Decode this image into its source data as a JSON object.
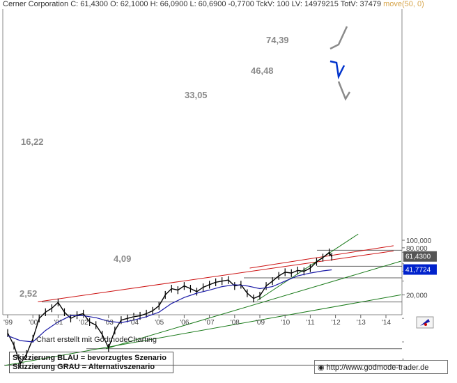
{
  "header": {
    "title": "Cerner Corporation",
    "values": "C: 61,4300  O: 62,1000  H: 66,0900  L: 60,6900  -0,7700  TckV: 100  LV: 14979215  TotV: 37479",
    "ma": "move(50, 0)"
  },
  "credit": "Chart erstellt mit GodmodeCharting",
  "legend": {
    "line1": "Skizzierung BLAU = bevorzugtes Szenario",
    "line2": "Skizzierung GRAU = Alternativszenario"
  },
  "url": "http://www.godmode-trader.de",
  "colors": {
    "price": "#000000",
    "ma": "#1a1aa6",
    "channel_red": "#cc1111",
    "trend_green": "#1a7a1a",
    "support": "#666666",
    "badge_last": "#555555",
    "badge_ma": "#0022cc",
    "scenario_blue": "#0033cc",
    "scenario_grey": "#8a8a8a"
  },
  "chart_data": {
    "type": "line",
    "scale": "log",
    "x_ticks": [
      "'99",
      "'00",
      "'01",
      "'02",
      "'03",
      "'04",
      "'05",
      "'06",
      "'07",
      "'08",
      "'09",
      "'10",
      "'11",
      "'12",
      "'13",
      "'14"
    ],
    "y_ticks": [
      "100,000",
      "80,000",
      "20,000"
    ],
    "last_price_label": "61,4300",
    "ma_label": "41,7724",
    "annotations": [
      "74,39",
      "46,48",
      "33,05",
      "16,22",
      "4,09",
      "2,52"
    ],
    "levels": [
      74.39,
      46.48,
      33.05,
      16.22,
      4.09,
      2.52
    ],
    "series": [
      {
        "x": [
          1999.0,
          1999.25,
          1999.5,
          1999.75,
          2000.0,
          2000.25,
          2000.5,
          2000.75,
          2001.0,
          2001.25,
          2001.5,
          2001.75,
          2002.0,
          2002.25,
          2002.5,
          2002.75,
          2003.0,
          2003.25,
          2003.5,
          2003.75,
          2004.0,
          2004.25,
          2004.5,
          2004.75,
          2005.0,
          2005.25,
          2005.5,
          2005.75,
          2006.0,
          2006.25,
          2006.5,
          2006.75,
          2007.0,
          2007.25,
          2007.5,
          2007.75,
          2008.0,
          2008.25,
          2008.5,
          2008.75,
          2009.0,
          2009.25,
          2009.5,
          2009.75,
          2010.0,
          2010.25,
          2010.5,
          2010.75,
          2011.0,
          2011.25,
          2011.5,
          2011.75,
          2011.85
        ],
        "y": [
          6.5,
          4.5,
          2.6,
          3.5,
          5.5,
          10,
          12,
          13.5,
          16,
          12,
          10,
          11,
          11.5,
          9,
          8.2,
          6.2,
          4.2,
          7,
          9.5,
          10,
          10.5,
          10.8,
          11.5,
          12.5,
          14.5,
          20,
          24,
          23,
          26,
          24,
          22,
          25,
          27,
          29,
          30,
          31,
          26,
          27,
          21,
          18,
          19.5,
          26,
          30,
          35,
          39,
          38,
          41,
          40,
          44,
          53,
          60,
          70,
          61.43
        ]
      },
      {
        "x": [
          1999.0,
          1999.5,
          2000.0,
          2000.5,
          2001.0,
          2001.5,
          2002.0,
          2002.5,
          2003.0,
          2003.5,
          2004.0,
          2004.5,
          2005.0,
          2005.5,
          2006.0,
          2006.5,
          2007.0,
          2007.5,
          2008.0,
          2008.5,
          2009.0,
          2009.5,
          2010.0,
          2010.5,
          2011.0,
          2011.5,
          2011.85
        ],
        "y": [
          6.0,
          5.2,
          5.0,
          7.0,
          9.0,
          10.8,
          10.8,
          10.2,
          9.2,
          8.8,
          9.5,
          10.5,
          12.0,
          15.5,
          18.5,
          21,
          23,
          25.5,
          27,
          26,
          24,
          25.5,
          30,
          35,
          38,
          40.5,
          41.77
        ]
      }
    ]
  }
}
